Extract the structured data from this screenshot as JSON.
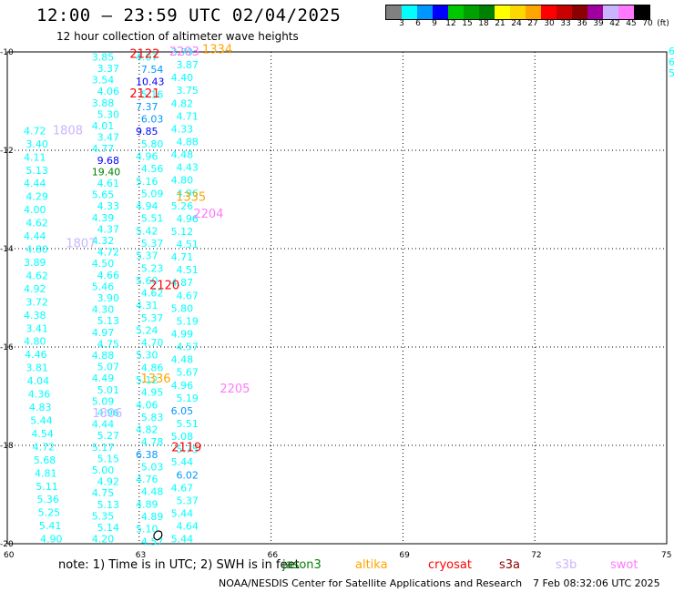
{
  "title": "12:00 – 23:59 UTC 02/04/2025",
  "subtitle": "12 hour collection of altimeter wave heights",
  "colorbar": {
    "colors": [
      "#808080",
      "#00ffff",
      "#0096ff",
      "#0000ff",
      "#00c800",
      "#00a000",
      "#008000",
      "#ffff00",
      "#ffd700",
      "#ffa500",
      "#ff0000",
      "#c80000",
      "#8b0000",
      "#a000a0",
      "#c8b4ff",
      "#ff78ff",
      "#000000"
    ],
    "labels": [
      "3",
      "6",
      "9",
      "12",
      "15",
      "18",
      "21",
      "24",
      "27",
      "30",
      "33",
      "36",
      "39",
      "42",
      "45",
      "70"
    ],
    "unit": "(ft)"
  },
  "axes": {
    "x_ticks": [
      "60",
      "63",
      "66",
      "69",
      "72",
      "75"
    ],
    "y_ticks": [
      "-10",
      "-12",
      "-14",
      "-16",
      "-18",
      "-20"
    ]
  },
  "tracks": [
    {
      "lon": 62.2,
      "lat_start": -10.1,
      "lat_end": -19.9,
      "values": [
        "3.85",
        "3.37",
        "3.54",
        "4.06",
        "3.88",
        "5.30",
        "4.01",
        "3.47",
        "4.77",
        "9.68",
        "19.40",
        "4.61",
        "5.65",
        "4.33",
        "4.39",
        "4.37",
        "4.32",
        "4.72",
        "4.50",
        "4.66",
        "5.46",
        "3.90",
        "4.30",
        "5.13",
        "4.97",
        "4.75",
        "4.88",
        "5.07",
        "4.49",
        "5.01",
        "5.09",
        "4.96",
        "4.44",
        "5.27",
        "5.17",
        "5.15",
        "5.00",
        "4.92",
        "4.75",
        "5.13",
        "5.35",
        "5.14",
        "4.20"
      ]
    },
    {
      "lon": 63.2,
      "lat_start": -10.1,
      "lat_end": -19.95,
      "values": [
        "4.07",
        "7.54",
        "10.43",
        "5.16",
        "7.37",
        "6.03",
        "9.85",
        "5.80",
        "4.96",
        "4.56",
        "5.16",
        "5.09",
        "4.94",
        "5.51",
        "5.42",
        "5.37",
        "5.37",
        "5.23",
        "5.60",
        "4.62",
        "4.31",
        "5.37",
        "5.24",
        "4.70",
        "5.30",
        "4.86",
        "5.12",
        "4.95",
        "4.06",
        "5.83",
        "4.82",
        "4.78",
        "6.38",
        "5.03",
        "4.76",
        "4.48",
        "4.89",
        "4.89",
        "5.10",
        "4.57"
      ]
    },
    {
      "lon": 64.0,
      "lat_start": -10.0,
      "lat_end": -19.9,
      "values": [
        "3.79",
        "3.87",
        "4.40",
        "3.75",
        "4.82",
        "4.71",
        "4.33",
        "4.88",
        "4.48",
        "4.43",
        "4.80",
        "4.96",
        "5.26",
        "4.96",
        "5.12",
        "4.51",
        "4.71",
        "4.51",
        "4.87",
        "4.67",
        "5.80",
        "5.19",
        "4.99",
        "4.57",
        "4.48",
        "5.67",
        "4.96",
        "5.19",
        "6.05",
        "5.51",
        "5.08",
        "5.75",
        "5.44",
        "6.02",
        "4.67",
        "5.37",
        "5.44",
        "4.64",
        "5.44"
      ]
    },
    {
      "lon": 60.6,
      "lat_start": -11.6,
      "lat_end": -19.9,
      "values": [
        "4.72",
        "3.40",
        "4.11",
        "5.13",
        "4.44",
        "4.29",
        "4.00",
        "4.62",
        "4.44",
        "4.80",
        "3.89",
        "4.62",
        "4.92",
        "3.72",
        "4.38",
        "3.41",
        "4.80",
        "4.46",
        "3.81",
        "4.04",
        "4.36",
        "4.83",
        "5.44",
        "4.54",
        "4.72",
        "5.68",
        "4.81",
        "5.11",
        "5.36",
        "5.25",
        "5.41",
        "4.90"
      ]
    }
  ],
  "time_labels": [
    {
      "text": "2122",
      "lon": 62.95,
      "lat": -10.05,
      "color": "#ff0000"
    },
    {
      "text": "2203",
      "lon": 63.85,
      "lat": -10.0,
      "color": "#ff78ff"
    },
    {
      "text": "1334",
      "lon": 64.6,
      "lat": -9.95,
      "color": "#ffa500"
    },
    {
      "text": "2121",
      "lon": 62.95,
      "lat": -10.85,
      "color": "#ff0000"
    },
    {
      "text": "1808",
      "lon": 61.2,
      "lat": -11.6,
      "color": "#c8b4ff"
    },
    {
      "text": "1335",
      "lon": 64.0,
      "lat": -12.95,
      "color": "#ffa500"
    },
    {
      "text": "2204",
      "lon": 64.4,
      "lat": -13.3,
      "color": "#ff78ff"
    },
    {
      "text": "1807",
      "lon": 61.5,
      "lat": -13.9,
      "color": "#c8b4ff"
    },
    {
      "text": "2120",
      "lon": 63.4,
      "lat": -14.75,
      "color": "#ff0000"
    },
    {
      "text": "1336",
      "lon": 63.2,
      "lat": -16.65,
      "color": "#ffa500"
    },
    {
      "text": "2205",
      "lon": 65.0,
      "lat": -16.85,
      "color": "#ff78ff"
    },
    {
      "text": "1806",
      "lon": 62.1,
      "lat": -17.35,
      "color": "#c8b4ff"
    },
    {
      "text": "2119",
      "lon": 63.9,
      "lat": -18.05,
      "color": "#ff0000"
    }
  ],
  "edge_values": [
    "6",
    "6",
    "5"
  ],
  "note": "note: 1) Time is in UTC; 2) SWH is in feet",
  "missions": [
    {
      "name": "jason3",
      "color": "#008000"
    },
    {
      "name": "altika",
      "color": "#ffa500"
    },
    {
      "name": "cryosat",
      "color": "#ff0000"
    },
    {
      "name": "s3a",
      "color": "#8b0000"
    },
    {
      "name": "s3b",
      "color": "#c8b4ff"
    },
    {
      "name": "swot",
      "color": "#ff78ff"
    }
  ],
  "credit": "NOAA/NESDIS Center for Satellite Applications and Research",
  "credit_date": "7 Feb 08:32:06 UTC 2025"
}
